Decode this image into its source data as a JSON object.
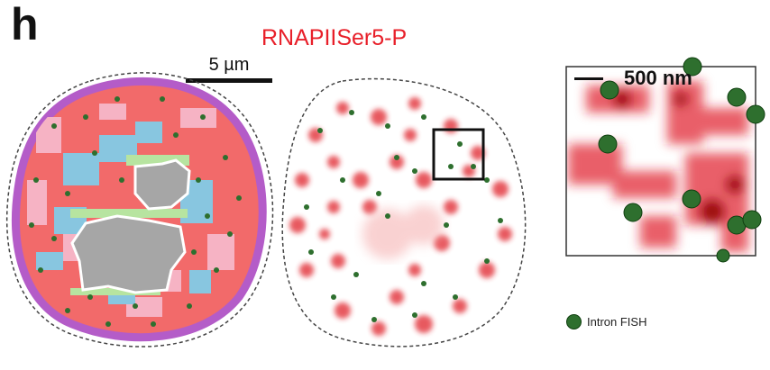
{
  "figure": {
    "panel_letter": "h",
    "title": "RNAPIISer5-P",
    "scale_bar_main": "5 µm",
    "scale_bar_inset": "500 nm",
    "legend_label": "Intron FISH"
  },
  "colors": {
    "title_red": "#e8202a",
    "nucleus_rim": "#b45cc8",
    "cluster_red": "#f26a6a",
    "cluster_pink": "#f6b3c4",
    "cluster_blue": "#88c6e0",
    "cluster_green": "#b7e4a0",
    "nucleolus_gray": "#a6a6a6",
    "fish_green": "#2e6f2e",
    "stain_red": "#e0202a"
  },
  "icons": {
    "legend_marker": "green-circle-icon"
  }
}
